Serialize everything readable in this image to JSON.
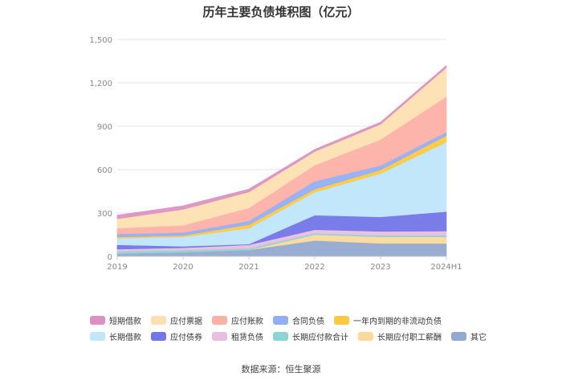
{
  "chart_data": {
    "type": "area",
    "stacked": true,
    "title": "历年主要负债堆积图（亿元）",
    "categories": [
      "2019",
      "2020",
      "2021",
      "2022",
      "2023",
      "2024H1"
    ],
    "yticks": [
      "0",
      "300",
      "600",
      "900",
      "1,200",
      "1,500"
    ],
    "ylim": [
      0,
      1500
    ],
    "grid": true,
    "legend_position": "bottom",
    "series": [
      {
        "name": "其它",
        "color": "#93a9d1",
        "values": [
          20,
          30,
          45,
          110,
          90,
          90
        ]
      },
      {
        "name": "长期应付职工薪酬",
        "color": "#fcd99b",
        "values": [
          0,
          0,
          0,
          40,
          45,
          45
        ]
      },
      {
        "name": "长期应付款合计",
        "color": "#8ad6d2",
        "values": [
          15,
          15,
          10,
          10,
          10,
          10
        ]
      },
      {
        "name": "租赁负债",
        "color": "#e8bfe0",
        "values": [
          15,
          15,
          25,
          25,
          28,
          30
        ]
      },
      {
        "name": "应付债券",
        "color": "#7375e8",
        "values": [
          30,
          10,
          5,
          100,
          100,
          135
        ]
      },
      {
        "name": "长期借款",
        "color": "#bfe6fa",
        "values": [
          45,
          65,
          110,
          160,
          300,
          480
        ]
      },
      {
        "name": "一年内到期的非流动负债",
        "color": "#fec841",
        "values": [
          10,
          10,
          25,
          20,
          25,
          45
        ]
      },
      {
        "name": "合同负债",
        "color": "#93aef6",
        "values": [
          20,
          20,
          25,
          55,
          30,
          25
        ]
      },
      {
        "name": "应付账款",
        "color": "#fdb0a6",
        "values": [
          40,
          50,
          90,
          110,
          180,
          245
        ]
      },
      {
        "name": "应付票据",
        "color": "#fde0b2",
        "values": [
          65,
          110,
          110,
          95,
          105,
          200
        ]
      },
      {
        "name": "短期借款",
        "color": "#dc91c4",
        "values": [
          25,
          25,
          20,
          15,
          15,
          15
        ]
      }
    ]
  },
  "legend": {
    "row1": [
      {
        "name": "短期借款",
        "color": "#dc91c4"
      },
      {
        "name": "应付票据",
        "color": "#fde0b2"
      },
      {
        "name": "应付账款",
        "color": "#fdb0a6"
      },
      {
        "name": "合同负债",
        "color": "#93aef6"
      },
      {
        "name": "一年内到期的非流动负债",
        "color": "#fec841"
      }
    ],
    "row2": [
      {
        "name": "长期借款",
        "color": "#bfe6fa"
      },
      {
        "name": "应付债券",
        "color": "#7375e8"
      },
      {
        "name": "租赁负债",
        "color": "#e8bfe0"
      },
      {
        "name": "长期应付款合计",
        "color": "#8ad6d2"
      },
      {
        "name": "长期应付职工薪酬",
        "color": "#fcd99b"
      },
      {
        "name": "其它",
        "color": "#93a9d1"
      }
    ]
  },
  "source": "数据来源：恒生聚源"
}
